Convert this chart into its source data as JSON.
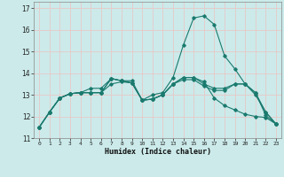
{
  "xlabel": "Humidex (Indice chaleur)",
  "bg_color": "#cceaea",
  "grid_color": "#b0d8d8",
  "line_color": "#1a7a6e",
  "xlim": [
    -0.5,
    23.5
  ],
  "ylim": [
    11.0,
    17.3
  ],
  "yticks": [
    11,
    12,
    13,
    14,
    15,
    16,
    17
  ],
  "xticks": [
    0,
    1,
    2,
    3,
    4,
    5,
    6,
    7,
    8,
    9,
    10,
    11,
    12,
    13,
    14,
    15,
    16,
    17,
    18,
    19,
    20,
    21,
    22,
    23
  ],
  "series": [
    [
      11.5,
      12.2,
      12.85,
      13.05,
      13.1,
      13.1,
      13.1,
      13.75,
      13.65,
      13.55,
      12.75,
      13.0,
      13.1,
      13.8,
      15.3,
      16.55,
      16.65,
      16.25,
      14.8,
      14.2,
      13.5,
      13.1,
      12.05,
      11.65
    ],
    [
      11.5,
      12.2,
      12.85,
      13.05,
      13.1,
      13.1,
      13.1,
      13.75,
      13.65,
      13.55,
      12.75,
      12.8,
      13.0,
      13.5,
      13.8,
      13.8,
      13.5,
      13.3,
      13.3,
      13.5,
      13.5,
      13.1,
      12.2,
      11.65
    ],
    [
      11.5,
      12.2,
      12.85,
      13.05,
      13.1,
      13.3,
      13.3,
      13.75,
      13.65,
      13.65,
      12.75,
      12.8,
      13.0,
      13.5,
      13.7,
      13.7,
      13.4,
      13.2,
      13.2,
      13.5,
      13.5,
      13.0,
      12.2,
      11.65
    ],
    [
      11.5,
      12.2,
      12.85,
      13.05,
      13.1,
      13.1,
      13.1,
      13.5,
      13.6,
      13.55,
      12.75,
      12.8,
      13.0,
      13.5,
      13.8,
      13.8,
      13.6,
      12.85,
      12.5,
      12.3,
      12.1,
      12.0,
      11.95,
      11.65
    ]
  ]
}
